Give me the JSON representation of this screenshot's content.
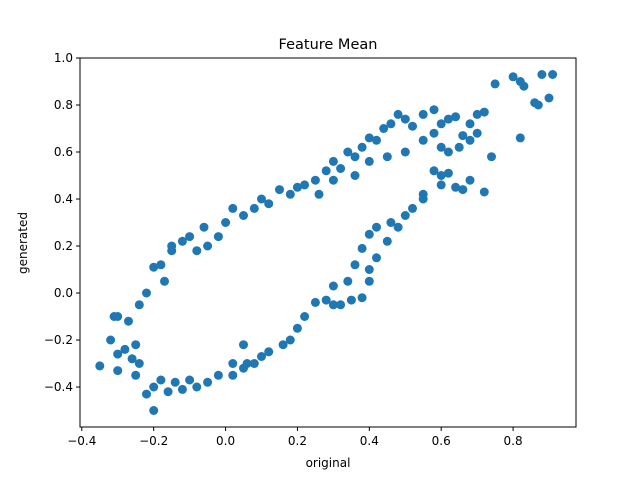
{
  "chart_data": {
    "type": "scatter",
    "title": "Feature Mean",
    "xlabel": "original",
    "ylabel": "generated",
    "xlim": [
      -0.405,
      0.975
    ],
    "ylim": [
      -0.57,
      1.0
    ],
    "grid": false,
    "xticks": [
      -0.4,
      -0.2,
      0.0,
      0.2,
      0.4,
      0.6,
      0.8
    ],
    "xtick_labels": [
      "−0.4",
      "−0.2",
      "0.0",
      "0.2",
      "0.4",
      "0.6",
      "0.8"
    ],
    "yticks": [
      -0.4,
      -0.2,
      0.0,
      0.2,
      0.4,
      0.6,
      0.8,
      1.0
    ],
    "ytick_labels": [
      "−0.4",
      "−0.2",
      "0.0",
      "0.2",
      "0.4",
      "0.6",
      "0.8",
      "1.0"
    ],
    "series": [
      {
        "color": "#1f77b4",
        "points": [
          [
            -0.35,
            -0.31
          ],
          [
            -0.31,
            -0.1
          ],
          [
            -0.3,
            -0.1
          ],
          [
            -0.32,
            -0.2
          ],
          [
            -0.3,
            -0.26
          ],
          [
            -0.25,
            -0.35
          ],
          [
            -0.24,
            -0.3
          ],
          [
            -0.22,
            -0.43
          ],
          [
            -0.2,
            -0.4
          ],
          [
            -0.2,
            -0.5
          ],
          [
            -0.18,
            -0.37
          ],
          [
            -0.16,
            -0.42
          ],
          [
            -0.14,
            -0.38
          ],
          [
            -0.12,
            -0.41
          ],
          [
            -0.1,
            -0.37
          ],
          [
            -0.08,
            -0.4
          ],
          [
            -0.05,
            -0.38
          ],
          [
            -0.02,
            -0.35
          ],
          [
            0.02,
            -0.35
          ],
          [
            -0.25,
            -0.22
          ],
          [
            -0.24,
            -0.05
          ],
          [
            -0.22,
            0.0
          ],
          [
            -0.2,
            0.11
          ],
          [
            -0.18,
            0.12
          ],
          [
            -0.17,
            0.05
          ],
          [
            -0.15,
            0.2
          ],
          [
            -0.12,
            0.22
          ],
          [
            -0.1,
            0.24
          ],
          [
            -0.08,
            0.18
          ],
          [
            -0.06,
            0.28
          ],
          [
            -0.05,
            0.2
          ],
          [
            -0.02,
            0.24
          ],
          [
            0.0,
            0.3
          ],
          [
            0.02,
            0.36
          ],
          [
            0.05,
            0.33
          ],
          [
            0.08,
            0.36
          ],
          [
            0.1,
            0.4
          ],
          [
            0.12,
            0.38
          ],
          [
            0.15,
            0.44
          ],
          [
            0.18,
            0.42
          ],
          [
            0.2,
            0.45
          ],
          [
            0.22,
            0.46
          ],
          [
            0.25,
            0.48
          ],
          [
            0.28,
            0.52
          ],
          [
            0.3,
            0.56
          ],
          [
            0.32,
            0.53
          ],
          [
            0.34,
            0.6
          ],
          [
            0.36,
            0.58
          ],
          [
            0.38,
            0.62
          ],
          [
            0.4,
            0.66
          ],
          [
            0.42,
            0.65
          ],
          [
            0.44,
            0.7
          ],
          [
            0.46,
            0.72
          ],
          [
            0.48,
            0.76
          ],
          [
            0.5,
            0.74
          ],
          [
            0.52,
            0.71
          ],
          [
            0.55,
            0.76
          ],
          [
            0.58,
            0.78
          ],
          [
            0.6,
            0.72
          ],
          [
            0.62,
            0.74
          ],
          [
            0.64,
            0.75
          ],
          [
            0.66,
            0.67
          ],
          [
            0.68,
            0.72
          ],
          [
            0.7,
            0.76
          ],
          [
            0.72,
            0.77
          ],
          [
            0.74,
            0.58
          ],
          [
            0.72,
            0.43
          ],
          [
            0.68,
            0.48
          ],
          [
            0.66,
            0.44
          ],
          [
            0.64,
            0.45
          ],
          [
            0.62,
            0.51
          ],
          [
            0.6,
            0.46
          ],
          [
            0.58,
            0.52
          ],
          [
            0.55,
            0.42
          ],
          [
            0.5,
            0.33
          ],
          [
            0.46,
            0.3
          ],
          [
            0.42,
            0.28
          ],
          [
            0.4,
            0.25
          ],
          [
            0.38,
            0.19
          ],
          [
            0.36,
            0.12
          ],
          [
            0.34,
            0.05
          ],
          [
            0.3,
            0.03
          ],
          [
            0.28,
            -0.03
          ],
          [
            0.25,
            -0.04
          ],
          [
            0.22,
            -0.1
          ],
          [
            0.2,
            -0.15
          ],
          [
            0.18,
            -0.2
          ],
          [
            0.16,
            -0.22
          ],
          [
            0.12,
            -0.25
          ],
          [
            0.1,
            -0.27
          ],
          [
            0.08,
            -0.3
          ],
          [
            0.05,
            -0.32
          ],
          [
            0.02,
            -0.3
          ],
          [
            0.35,
            -0.03
          ],
          [
            0.3,
            -0.05
          ],
          [
            0.4,
            0.1
          ],
          [
            0.42,
            0.15
          ],
          [
            0.45,
            0.22
          ],
          [
            0.48,
            0.28
          ],
          [
            0.52,
            0.36
          ],
          [
            0.55,
            0.4
          ],
          [
            0.6,
            0.5
          ],
          [
            0.62,
            0.6
          ],
          [
            0.65,
            0.62
          ],
          [
            0.68,
            0.65
          ],
          [
            0.7,
            0.68
          ],
          [
            0.75,
            0.89
          ],
          [
            0.8,
            0.92
          ],
          [
            0.82,
            0.9
          ],
          [
            0.83,
            0.88
          ],
          [
            0.86,
            0.81
          ],
          [
            0.87,
            0.8
          ],
          [
            0.88,
            0.93
          ],
          [
            0.9,
            0.83
          ],
          [
            0.91,
            0.93
          ],
          [
            0.82,
            0.66
          ],
          [
            0.6,
            0.62
          ],
          [
            0.58,
            0.68
          ],
          [
            0.55,
            0.65
          ],
          [
            0.5,
            0.6
          ],
          [
            0.45,
            0.58
          ],
          [
            0.4,
            0.56
          ],
          [
            0.36,
            0.5
          ],
          [
            0.3,
            0.48
          ],
          [
            0.26,
            0.42
          ],
          [
            0.4,
            0.05
          ],
          [
            0.38,
            -0.02
          ],
          [
            0.32,
            -0.05
          ],
          [
            0.06,
            -0.3
          ],
          [
            0.05,
            -0.22
          ],
          [
            -0.26,
            -0.28
          ],
          [
            -0.28,
            -0.24
          ],
          [
            -0.3,
            -0.33
          ],
          [
            -0.27,
            -0.12
          ],
          [
            -0.15,
            0.18
          ]
        ]
      }
    ]
  }
}
